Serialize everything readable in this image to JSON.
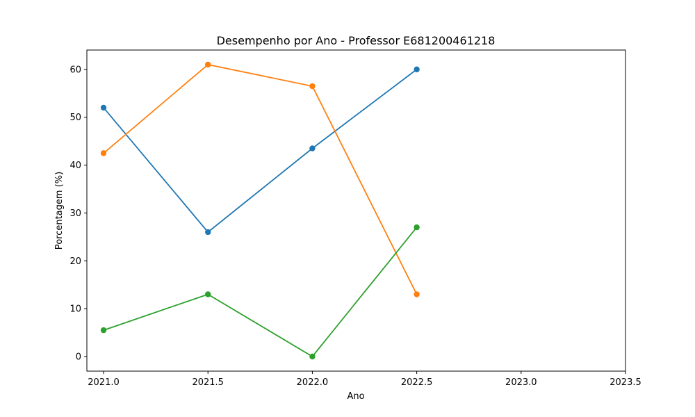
{
  "chart_data": {
    "type": "line",
    "title": "Desempenho por Ano - Professor E681200461218",
    "xlabel": "Ano",
    "ylabel": "Porcentagem (%)",
    "xlim": [
      2020.92,
      2023.5
    ],
    "ylim": [
      -3.05,
      64.05
    ],
    "x_ticks": [
      2021.0,
      2021.5,
      2022.0,
      2022.5,
      2023.0,
      2023.5
    ],
    "x_tick_labels": [
      "2021.0",
      "2021.5",
      "2022.0",
      "2022.5",
      "2023.0",
      "2023.5"
    ],
    "y_ticks": [
      0,
      10,
      20,
      30,
      40,
      50,
      60
    ],
    "y_tick_labels": [
      "0",
      "10",
      "20",
      "30",
      "40",
      "50",
      "60"
    ],
    "grid": false,
    "legend": false,
    "x": [
      2021.0,
      2021.5,
      2022.0,
      2022.5
    ],
    "series": [
      {
        "color": "#1f77b4",
        "values": [
          52,
          26,
          43.5,
          60
        ]
      },
      {
        "color": "#ff7f0e",
        "values": [
          42.5,
          61,
          56.5,
          13
        ]
      },
      {
        "color": "#2ca02c",
        "values": [
          5.5,
          13,
          0,
          27
        ]
      }
    ]
  }
}
